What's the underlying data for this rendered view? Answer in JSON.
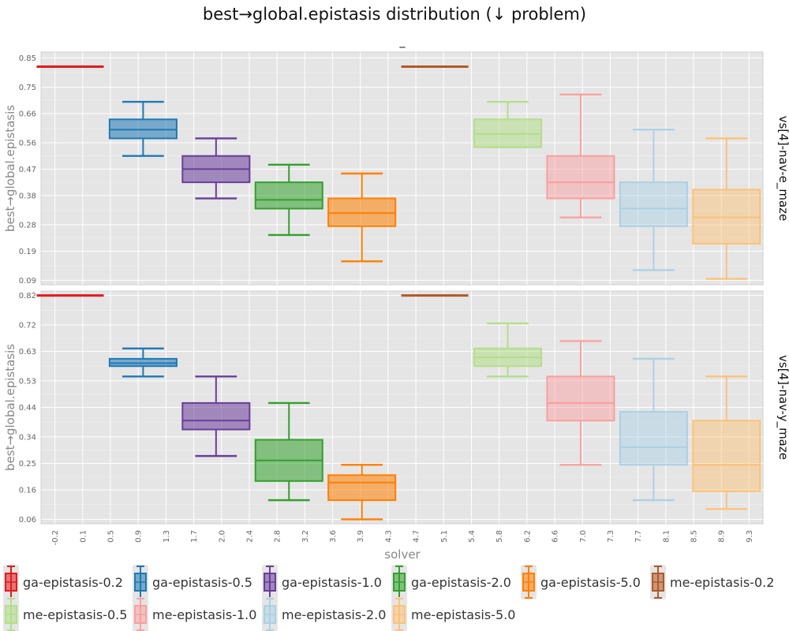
{
  "chart_data": {
    "type": "box",
    "title": "best→global.epistasis distribution (↓ problem)",
    "subtitle": "_",
    "xlabel": "solver",
    "ylabel": "best→global.epistasis",
    "x_tick_labels": [
      "-0.2",
      "0.1",
      "0.5",
      "0.9",
      "1.3",
      "1.7",
      "2.0",
      "2.4",
      "2.8",
      "3.2",
      "3.6",
      "3.9",
      "4.3",
      "4.7",
      "5.1",
      "5.4",
      "5.8",
      "6.2",
      "6.6",
      "7.0",
      "7.3",
      "7.7",
      "8.1",
      "8.5",
      "8.9",
      "9.3"
    ],
    "x_range": [
      -0.4,
      9.5
    ],
    "grid": true,
    "legend_position": "bottom",
    "series": [
      {
        "name": "ga-epistasis-0.2",
        "color": "#e41a1c",
        "fill_opacity": 0.55,
        "stroke_opacity": 1
      },
      {
        "name": "ga-epistasis-0.5",
        "color": "#1f78b4",
        "fill_opacity": 0.55,
        "stroke_opacity": 1
      },
      {
        "name": "ga-epistasis-1.0",
        "color": "#6a3d9a",
        "fill_opacity": 0.55,
        "stroke_opacity": 1
      },
      {
        "name": "ga-epistasis-2.0",
        "color": "#33a02c",
        "fill_opacity": 0.55,
        "stroke_opacity": 1
      },
      {
        "name": "ga-epistasis-5.0",
        "color": "#ff7f00",
        "fill_opacity": 0.55,
        "stroke_opacity": 1
      },
      {
        "name": "me-epistasis-0.2",
        "color": "#b15928",
        "fill_opacity": 0.55,
        "stroke_opacity": 1
      },
      {
        "name": "me-epistasis-0.5",
        "color": "#b2df8a",
        "fill_opacity": 0.55,
        "stroke_opacity": 1
      },
      {
        "name": "me-epistasis-1.0",
        "color": "#fb9a99",
        "fill_opacity": 0.45,
        "stroke_opacity": 0.9
      },
      {
        "name": "me-epistasis-2.0",
        "color": "#a6cee3",
        "fill_opacity": 0.45,
        "stroke_opacity": 0.9
      },
      {
        "name": "me-epistasis-5.0",
        "color": "#fdbf6f",
        "fill_opacity": 0.45,
        "stroke_opacity": 0.9
      }
    ],
    "facets": [
      {
        "label": "vs[4]-nav-e_maze",
        "y_ticks": [
          "0.09",
          "0.19",
          "0.28",
          "0.38",
          "0.47",
          "0.56",
          "0.66",
          "0.75",
          "0.85"
        ],
        "ylim": [
          0.075,
          0.87
        ],
        "boxes": [
          {
            "x": 0.0,
            "min": 0.82,
            "q1": 0.82,
            "median": 0.82,
            "q3": 0.82,
            "max": 0.82
          },
          {
            "x": 1.0,
            "min": 0.515,
            "q1": 0.575,
            "median": 0.605,
            "q3": 0.64,
            "max": 0.7
          },
          {
            "x": 2.0,
            "min": 0.37,
            "q1": 0.425,
            "median": 0.47,
            "q3": 0.515,
            "max": 0.575
          },
          {
            "x": 3.0,
            "min": 0.245,
            "q1": 0.335,
            "median": 0.365,
            "q3": 0.425,
            "max": 0.485
          },
          {
            "x": 4.0,
            "min": 0.155,
            "q1": 0.275,
            "median": 0.32,
            "q3": 0.37,
            "max": 0.455
          },
          {
            "x": 5.0,
            "min": 0.82,
            "q1": 0.82,
            "median": 0.82,
            "q3": 0.82,
            "max": 0.82
          },
          {
            "x": 6.0,
            "min": 0.545,
            "q1": 0.545,
            "median": 0.59,
            "q3": 0.64,
            "max": 0.7
          },
          {
            "x": 7.0,
            "min": 0.305,
            "q1": 0.37,
            "median": 0.425,
            "q3": 0.515,
            "max": 0.725
          },
          {
            "x": 8.0,
            "min": 0.125,
            "q1": 0.275,
            "median": 0.335,
            "q3": 0.425,
            "max": 0.605
          },
          {
            "x": 9.0,
            "min": 0.095,
            "q1": 0.215,
            "median": 0.305,
            "q3": 0.4,
            "max": 0.575
          }
        ]
      },
      {
        "label": "vs[4]-nav-y_maze",
        "y_ticks": [
          "0.06",
          "0.16",
          "0.25",
          "0.34",
          "0.44",
          "0.53",
          "0.63",
          "0.72",
          "0.82"
        ],
        "ylim": [
          0.045,
          0.835
        ],
        "boxes": [
          {
            "x": 0.0,
            "min": 0.82,
            "q1": 0.82,
            "median": 0.82,
            "q3": 0.82,
            "max": 0.82
          },
          {
            "x": 1.0,
            "min": 0.545,
            "q1": 0.58,
            "median": 0.59,
            "q3": 0.605,
            "max": 0.64
          },
          {
            "x": 2.0,
            "min": 0.275,
            "q1": 0.365,
            "median": 0.395,
            "q3": 0.455,
            "max": 0.545
          },
          {
            "x": 3.0,
            "min": 0.125,
            "q1": 0.19,
            "median": 0.26,
            "q3": 0.33,
            "max": 0.455
          },
          {
            "x": 4.0,
            "min": 0.06,
            "q1": 0.125,
            "median": 0.185,
            "q3": 0.21,
            "max": 0.245
          },
          {
            "x": 5.0,
            "min": 0.82,
            "q1": 0.82,
            "median": 0.82,
            "q3": 0.82,
            "max": 0.82
          },
          {
            "x": 6.0,
            "min": 0.545,
            "q1": 0.58,
            "median": 0.61,
            "q3": 0.64,
            "max": 0.725
          },
          {
            "x": 7.0,
            "min": 0.245,
            "q1": 0.395,
            "median": 0.455,
            "q3": 0.545,
            "max": 0.665
          },
          {
            "x": 8.0,
            "min": 0.125,
            "q1": 0.245,
            "median": 0.305,
            "q3": 0.425,
            "max": 0.605
          },
          {
            "x": 9.0,
            "min": 0.095,
            "q1": 0.155,
            "median": 0.245,
            "q3": 0.395,
            "max": 0.545
          }
        ]
      }
    ]
  }
}
